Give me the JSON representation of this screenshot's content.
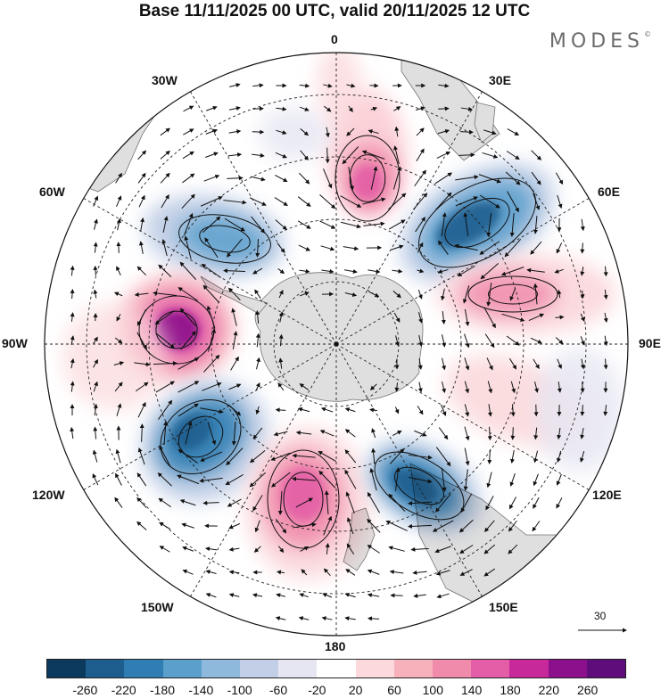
{
  "header": {
    "title": "Base 11/11/2025 00 UTC, valid 20/11/2025 12 UTC",
    "brand": "MODES",
    "brand_mark": "©"
  },
  "map": {
    "projection": "south-polar-stereographic",
    "longitude_labels": {
      "lon_0": "0",
      "lon_30e": "30E",
      "lon_60e": "60E",
      "lon_90e": "90E",
      "lon_120e": "120E",
      "lon_150e": "150E",
      "lon_180": "180",
      "lon_150w": "150W",
      "lon_120w": "120W",
      "lon_90w": "90W",
      "lon_60w": "60W",
      "lon_30w": "30W"
    },
    "reference_vector": {
      "label": "30"
    }
  },
  "colorbar": {
    "colors": [
      "#0c3a5e",
      "#1d5e8f",
      "#2f7db3",
      "#5b9fcc",
      "#8fb9dc",
      "#c2cfe6",
      "#e6e6f2",
      "#ffffff",
      "#fbd9dc",
      "#f7b1bb",
      "#f08bab",
      "#e35ea6",
      "#c7289a",
      "#8c108c",
      "#5e0d7a"
    ],
    "ticks": [
      "-260",
      "-220",
      "-180",
      "-140",
      "-100",
      "-60",
      "-20",
      "20",
      "60",
      "100",
      "140",
      "180",
      "220",
      "260"
    ]
  }
}
